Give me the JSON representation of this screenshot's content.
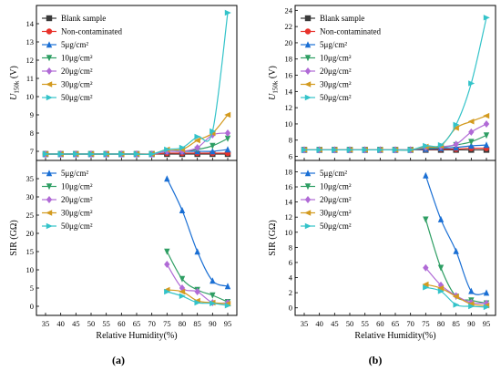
{
  "styles": {
    "Blank sample": {
      "color": "#3a3a3a",
      "marker": "square"
    },
    "Non-contaminated": {
      "color": "#e8322b",
      "marker": "circle"
    },
    "5μg/cm²": {
      "color": "#1a6fd4",
      "marker": "triangle-up"
    },
    "10μg/cm²": {
      "color": "#2e9e63",
      "marker": "triangle-down"
    },
    "20μg/cm²": {
      "color": "#b06ad6",
      "marker": "diamond"
    },
    "30μg/cm²": {
      "color": "#d39a1f",
      "marker": "triangle-left"
    },
    "50μg/cm²": {
      "color": "#33c3c9",
      "marker": "triangle-right"
    }
  },
  "chart_data": [
    {
      "panel": "a-top",
      "type": "line",
      "ylabel_main": "U",
      "ylabel_sub": "150k",
      "ylabel_unit": " (V)",
      "ylim": [
        6.5,
        15
      ],
      "yticks": [
        "7",
        "8",
        "9",
        "10",
        "11",
        "12",
        "13",
        "14"
      ],
      "xlim": [
        32,
        98
      ],
      "x": [
        35,
        40,
        45,
        50,
        55,
        60,
        65,
        70,
        75,
        80,
        85,
        90,
        95
      ],
      "legend": "top-left",
      "series": [
        {
          "name": "Blank sample",
          "values": [
            6.85,
            6.85,
            6.85,
            6.85,
            6.85,
            6.85,
            6.85,
            6.85,
            6.85,
            6.85,
            6.85,
            6.85,
            6.85
          ]
        },
        {
          "name": "Non-contaminated",
          "values": [
            6.85,
            6.85,
            6.85,
            6.85,
            6.85,
            6.85,
            6.85,
            6.85,
            6.9,
            6.9,
            6.9,
            6.9,
            6.9
          ]
        },
        {
          "name": "5μg/cm²",
          "values": [
            6.85,
            6.85,
            6.85,
            6.85,
            6.85,
            6.85,
            6.85,
            6.85,
            7.0,
            7.0,
            7.0,
            7.0,
            7.1
          ]
        },
        {
          "name": "10μg/cm²",
          "values": [
            6.85,
            6.85,
            6.85,
            6.85,
            6.85,
            6.85,
            6.85,
            6.85,
            7.0,
            7.0,
            7.1,
            7.3,
            7.7
          ]
        },
        {
          "name": "20μg/cm²",
          "values": [
            6.85,
            6.85,
            6.85,
            6.85,
            6.85,
            6.85,
            6.85,
            6.85,
            7.0,
            7.0,
            7.2,
            7.9,
            8.0
          ]
        },
        {
          "name": "30μg/cm²",
          "values": [
            6.85,
            6.85,
            6.85,
            6.85,
            6.85,
            6.85,
            6.85,
            6.85,
            7.1,
            7.1,
            7.6,
            8.0,
            9.0
          ]
        },
        {
          "name": "50μg/cm²",
          "values": [
            6.85,
            6.85,
            6.85,
            6.85,
            6.85,
            6.85,
            6.85,
            6.85,
            7.1,
            7.2,
            7.8,
            8.1,
            14.6
          ]
        }
      ]
    },
    {
      "panel": "a-bottom",
      "type": "line",
      "ylabel_main": "SIR (GΩ)",
      "ylim": [
        -2.5,
        40
      ],
      "yticks": [
        "0",
        "5",
        "10",
        "15",
        "20",
        "25",
        "30",
        "35"
      ],
      "xlim": [
        32,
        98
      ],
      "x": [
        75,
        80,
        85,
        90,
        95
      ],
      "xlabel": "Relative Humidity(%)",
      "xticks": [
        "35",
        "40",
        "45",
        "50",
        "55",
        "60",
        "65",
        "70",
        "75",
        "80",
        "85",
        "90",
        "95"
      ],
      "legend": "top-left",
      "series": [
        {
          "name": "5μg/cm²",
          "values": [
            35,
            26.3,
            15,
            7,
            5.5
          ]
        },
        {
          "name": "10μg/cm²",
          "values": [
            15,
            7.5,
            4.5,
            3,
            1.2
          ]
        },
        {
          "name": "20μg/cm²",
          "values": [
            11.5,
            5,
            4,
            1,
            1
          ]
        },
        {
          "name": "30μg/cm²",
          "values": [
            4.5,
            4,
            1.5,
            1,
            0.7
          ]
        },
        {
          "name": "50μg/cm²",
          "values": [
            4,
            2.8,
            1,
            0.8,
            0.2
          ]
        }
      ]
    },
    {
      "panel": "b-top",
      "type": "line",
      "ylabel_main": "U",
      "ylabel_sub": "150k",
      "ylabel_unit": " (V)",
      "ylim": [
        5.5,
        24.6
      ],
      "yticks": [
        "6",
        "8",
        "10",
        "12",
        "14",
        "16",
        "18",
        "20",
        "22",
        "24"
      ],
      "xlim": [
        32,
        98
      ],
      "x": [
        35,
        40,
        45,
        50,
        55,
        60,
        65,
        70,
        75,
        80,
        85,
        90,
        95
      ],
      "legend": "top-left",
      "series": [
        {
          "name": "Blank sample",
          "values": [
            6.8,
            6.8,
            6.8,
            6.8,
            6.8,
            6.8,
            6.8,
            6.8,
            6.8,
            6.8,
            6.8,
            6.8,
            6.8
          ]
        },
        {
          "name": "Non-contaminated",
          "values": [
            6.8,
            6.8,
            6.8,
            6.8,
            6.8,
            6.8,
            6.8,
            6.8,
            6.85,
            6.9,
            6.9,
            7.0,
            7.0
          ]
        },
        {
          "name": "5μg/cm²",
          "values": [
            6.8,
            6.8,
            6.8,
            6.8,
            6.8,
            6.8,
            6.8,
            6.8,
            6.9,
            7.0,
            7.1,
            7.3,
            7.4
          ]
        },
        {
          "name": "10μg/cm²",
          "values": [
            6.8,
            6.8,
            6.8,
            6.8,
            6.8,
            6.8,
            6.8,
            6.8,
            7.0,
            7.1,
            7.4,
            7.8,
            8.6
          ]
        },
        {
          "name": "20μg/cm²",
          "values": [
            6.8,
            6.8,
            6.8,
            6.8,
            6.8,
            6.8,
            6.8,
            6.8,
            7.1,
            7.2,
            7.5,
            9.0,
            10.0
          ]
        },
        {
          "name": "30μg/cm²",
          "values": [
            6.8,
            6.8,
            6.8,
            6.8,
            6.8,
            6.8,
            6.8,
            6.8,
            7.2,
            7.3,
            9.5,
            10.3,
            11.0
          ]
        },
        {
          "name": "50μg/cm²",
          "values": [
            6.8,
            6.8,
            6.8,
            6.8,
            6.8,
            6.8,
            6.8,
            6.8,
            7.3,
            7.4,
            9.9,
            15.0,
            23.1
          ]
        }
      ]
    },
    {
      "panel": "b-bottom",
      "type": "line",
      "ylabel_main": "SIR (GΩ)",
      "ylim": [
        -1,
        19.5
      ],
      "yticks": [
        "0",
        "2",
        "4",
        "6",
        "8",
        "10",
        "12",
        "14",
        "16",
        "18"
      ],
      "xlim": [
        32,
        98
      ],
      "x": [
        75,
        80,
        85,
        90,
        95
      ],
      "xlabel": "Relative Humidity(%)",
      "xticks": [
        "35",
        "40",
        "45",
        "50",
        "55",
        "60",
        "65",
        "70",
        "75",
        "80",
        "85",
        "90",
        "95"
      ],
      "legend": "top-left",
      "series": [
        {
          "name": "5μg/cm²",
          "values": [
            17.5,
            11.7,
            7.5,
            2.2,
            2.0
          ]
        },
        {
          "name": "10μg/cm²",
          "values": [
            11.7,
            5.3,
            1.5,
            1.0,
            0.6
          ]
        },
        {
          "name": "20μg/cm²",
          "values": [
            5.3,
            3.0,
            1.6,
            0.7,
            0.6
          ]
        },
        {
          "name": "30μg/cm²",
          "values": [
            3.1,
            2.6,
            1.5,
            0.5,
            0.3
          ]
        },
        {
          "name": "50μg/cm²",
          "values": [
            2.7,
            2.2,
            0.4,
            0.2,
            0.1
          ]
        }
      ]
    }
  ],
  "captions": [
    "(a)",
    "(b)"
  ]
}
